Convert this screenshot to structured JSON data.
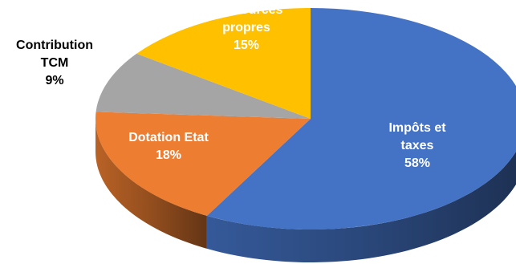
{
  "chart_data": {
    "type": "pie",
    "style": "3d-tilted",
    "legend": "none",
    "slices": [
      {
        "key": "impots",
        "label_lines": [
          "Impôts et",
          "taxes"
        ],
        "value": 58,
        "pct_label": "58%",
        "color": "#4472C4",
        "label_color": "#ffffff",
        "label_position": "inside"
      },
      {
        "key": "dotation",
        "label_lines": [
          "Dotation Etat"
        ],
        "value": 18,
        "pct_label": "18%",
        "color": "#ED7D31",
        "label_color": "#ffffff",
        "label_position": "inside"
      },
      {
        "key": "tcm",
        "label_lines": [
          "Contribution",
          "TCM"
        ],
        "value": 9,
        "pct_label": "9%",
        "color": "#A5A5A5",
        "label_color": "#000000",
        "label_position": "outside"
      },
      {
        "key": "ressources",
        "label_lines": [
          "Ressources",
          "propres"
        ],
        "value": 15,
        "pct_label": "15%",
        "color": "#FFC000",
        "label_color": "#ffffff",
        "label_position": "inside"
      }
    ]
  }
}
